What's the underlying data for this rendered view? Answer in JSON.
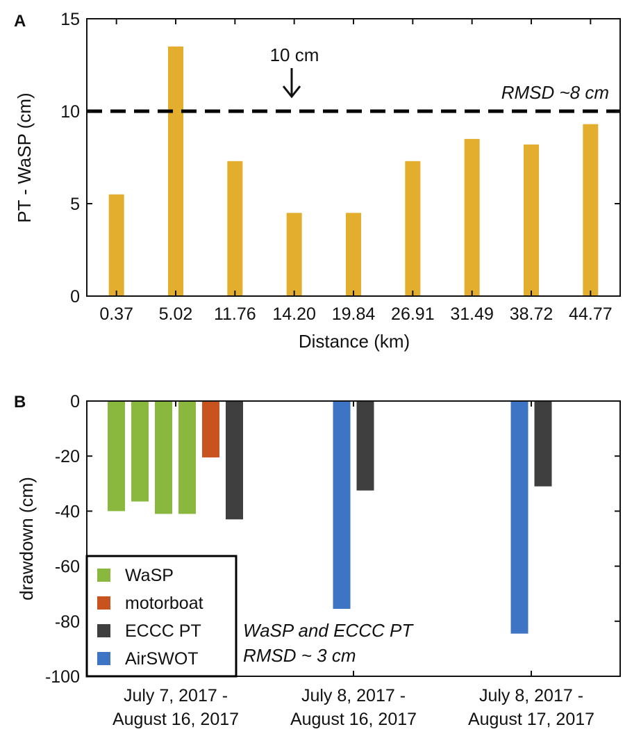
{
  "colors": {
    "WaSP": "#8ab83e",
    "motorboat": "#c8531e",
    "ECCC PT": "#3f3f3f",
    "AirSWOT": "#3e74c4",
    "panelA_bar": "#e3ae2e",
    "axis": "#111111"
  },
  "chart_data": [
    {
      "panel": "A",
      "type": "bar",
      "title": "",
      "xlabel": "Distance (km)",
      "ylabel": "PT - WaSP (cm)",
      "categories": [
        "0.37",
        "5.02",
        "11.76",
        "14.20",
        "19.84",
        "26.91",
        "31.49",
        "38.72",
        "44.77"
      ],
      "values": [
        5.5,
        13.5,
        7.3,
        4.5,
        4.5,
        7.3,
        8.5,
        8.2,
        9.3
      ],
      "ylim": [
        0,
        15
      ],
      "yticks": [
        "0",
        "5",
        "10",
        "15"
      ],
      "reference_line": {
        "y": 10,
        "style": "dashed",
        "label": "RMSD ~8 cm"
      },
      "annotation": {
        "text": "10 cm",
        "arrow": "down",
        "at_category": "14.20"
      }
    },
    {
      "panel": "B",
      "type": "bar",
      "title": "",
      "xlabel": "",
      "ylabel": "drawdown (cm)",
      "categories": [
        [
          "July 7, 2017 -",
          "August 16, 2017"
        ],
        [
          "July 8, 2017 -",
          "August 16, 2017"
        ],
        [
          "July 8, 2017 -",
          "August 17, 2017"
        ]
      ],
      "ylim": [
        -100,
        0
      ],
      "yticks": [
        "0",
        "-20",
        "-40",
        "-60",
        "-80",
        "-100"
      ],
      "groups": [
        {
          "bars": [
            {
              "series": "WaSP",
              "value": -40
            },
            {
              "series": "WaSP",
              "value": -36.5
            },
            {
              "series": "WaSP",
              "value": -41
            },
            {
              "series": "WaSP",
              "value": -41
            },
            {
              "series": "motorboat",
              "value": -20.5
            },
            {
              "series": "ECCC PT",
              "value": -43
            }
          ]
        },
        {
          "bars": [
            {
              "series": "AirSWOT",
              "value": -75.5
            },
            {
              "series": "ECCC PT",
              "value": -32.5
            }
          ]
        },
        {
          "bars": [
            {
              "series": "AirSWOT",
              "value": -84.5
            },
            {
              "series": "ECCC PT",
              "value": -31
            }
          ]
        }
      ],
      "legend": [
        "WaSP",
        "motorboat",
        "ECCC PT",
        "AirSWOT"
      ],
      "legend_position": "bottom-left",
      "annotation_lines": [
        "WaSP and ECCC PT",
        "RMSD ~ 3 cm"
      ]
    }
  ]
}
